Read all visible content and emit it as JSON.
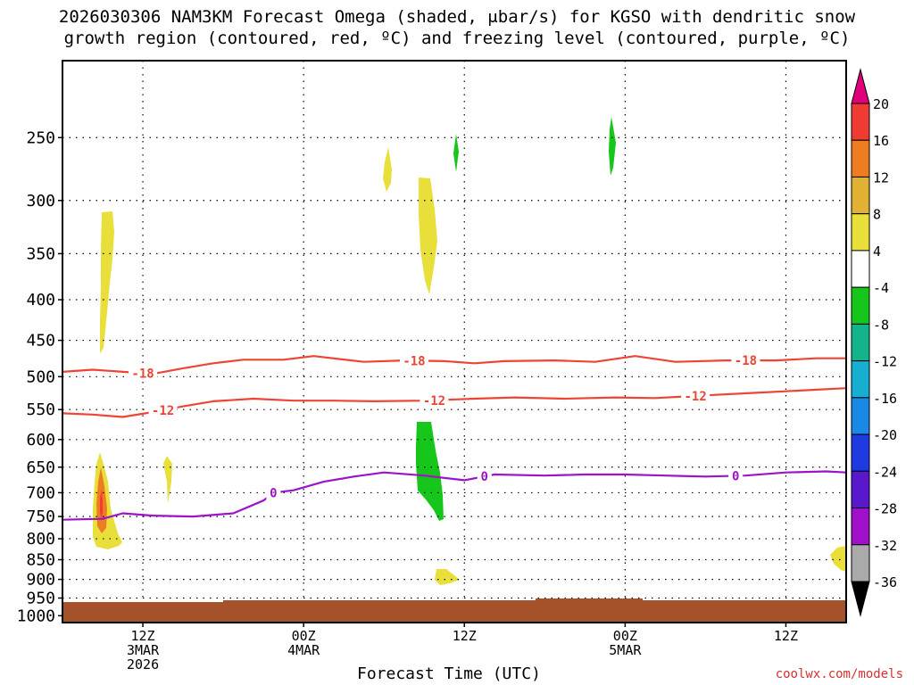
{
  "chart_data": {
    "type": "heatmap",
    "title_line1": "2026030306 NAM3KM Forecast Omega (shaded, μbar/s) for KGSO with dendritic snow",
    "title_line2": "growth region (contoured, red, ºC) and freezing level (contoured, purple, ºC)",
    "xlabel": "Forecast Time (UTC)",
    "credit": "coolwx.com/models",
    "x_hours_range": [
      6,
      84
    ],
    "y_pressure_range": [
      1020,
      200
    ],
    "y_ticks": [
      250,
      300,
      350,
      400,
      450,
      500,
      550,
      600,
      650,
      700,
      750,
      800,
      850,
      900,
      950,
      1000
    ],
    "y_tick_labels": [
      "250",
      "300",
      "350",
      "400",
      "450",
      "500",
      "550",
      "600",
      "650",
      "700",
      "750",
      "800",
      "850",
      "900",
      "950",
      "1000"
    ],
    "x_ticks": [
      {
        "hour": 14,
        "lines": [
          "12Z",
          "3MAR",
          "2026"
        ]
      },
      {
        "hour": 30,
        "lines": [
          "00Z",
          "4MAR"
        ]
      },
      {
        "hour": 46,
        "lines": [
          "12Z"
        ]
      },
      {
        "hour": 62,
        "lines": [
          "00Z",
          "5MAR"
        ]
      },
      {
        "hour": 78,
        "lines": [
          "12Z"
        ]
      }
    ],
    "colorbar": {
      "labels": [
        "20",
        "16",
        "12",
        "8",
        "4",
        "-4",
        "-8",
        "-12",
        "-16",
        "-20",
        "-24",
        "-28",
        "-32",
        "-36"
      ],
      "colors": [
        "#e0007a",
        "#ee3c33",
        "#ee7d22",
        "#e0b132",
        "#e8df3a",
        "#ffffff",
        "#16c61a",
        "#14b38c",
        "#17aed1",
        "#1a88e6",
        "#1f3ae0",
        "#5a18cc",
        "#a010c8",
        "#aaaaaa",
        "#000000"
      ]
    },
    "contours": [
      {
        "name": "dgz-top-minus18",
        "color": "#ee4436",
        "label": "-18",
        "label_hours": [
          14,
          41,
          74
        ],
        "points": [
          [
            6,
            493
          ],
          [
            9,
            490
          ],
          [
            13,
            494
          ],
          [
            15,
            496
          ],
          [
            18,
            488
          ],
          [
            21,
            481
          ],
          [
            24,
            476
          ],
          [
            28,
            476
          ],
          [
            31,
            471
          ],
          [
            36,
            479
          ],
          [
            40,
            477
          ],
          [
            44,
            478
          ],
          [
            47,
            481
          ],
          [
            50,
            478
          ],
          [
            55,
            477
          ],
          [
            59,
            479
          ],
          [
            63,
            471
          ],
          [
            67,
            479
          ],
          [
            72,
            477
          ],
          [
            77,
            477
          ],
          [
            81,
            474
          ],
          [
            84,
            474
          ]
        ]
      },
      {
        "name": "dgz-bottom-minus12",
        "color": "#ee4436",
        "label": "-12",
        "label_hours": [
          16,
          43,
          69
        ],
        "points": [
          [
            6,
            556
          ],
          [
            9,
            558
          ],
          [
            12,
            562
          ],
          [
            15,
            554
          ],
          [
            18,
            545
          ],
          [
            21,
            537
          ],
          [
            25,
            533
          ],
          [
            29,
            536
          ],
          [
            33,
            536
          ],
          [
            37,
            537
          ],
          [
            42,
            536
          ],
          [
            47,
            533
          ],
          [
            51,
            531
          ],
          [
            56,
            533
          ],
          [
            61,
            531
          ],
          [
            65,
            532
          ],
          [
            71,
            527
          ],
          [
            75,
            524
          ],
          [
            80,
            520
          ],
          [
            84,
            517
          ]
        ]
      },
      {
        "name": "freezing-level-0",
        "color": "#9d13c7",
        "label": "0",
        "label_hours": [
          27,
          48,
          73
        ],
        "points": [
          [
            6,
            757
          ],
          [
            10,
            755
          ],
          [
            12,
            743
          ],
          [
            15,
            748
          ],
          [
            19,
            750
          ],
          [
            23,
            743
          ],
          [
            26,
            716
          ],
          [
            27,
            700
          ],
          [
            29,
            695
          ],
          [
            32,
            678
          ],
          [
            35,
            668
          ],
          [
            38,
            660
          ],
          [
            42,
            666
          ],
          [
            46,
            675
          ],
          [
            49,
            664
          ],
          [
            54,
            666
          ],
          [
            58,
            664
          ],
          [
            62,
            664
          ],
          [
            66,
            666
          ],
          [
            70,
            668
          ],
          [
            74,
            666
          ],
          [
            78,
            660
          ],
          [
            82,
            658
          ],
          [
            84,
            660
          ]
        ]
      }
    ],
    "omega_features": [
      {
        "name": "rising-yellow-plume-upper",
        "value": 4,
        "shape": "rising plume"
      },
      {
        "name": "rising-yellow-plume-lower",
        "value": 4,
        "shape": "rising plume"
      },
      {
        "name": "rising-orange-core",
        "value": 12,
        "shape": "rising plume"
      },
      {
        "name": "rising-red-core",
        "value": 16,
        "shape": "rising plume"
      },
      {
        "name": "rising-yellow-thin-plume",
        "value": 4,
        "shape": "rising plume"
      },
      {
        "name": "rising-yellow-mid-column",
        "value": 4,
        "shape": "rising plume"
      },
      {
        "name": "rising-yellow-upper-blob",
        "value": 4,
        "shape": "rising plume"
      },
      {
        "name": "rising-yellow-low-blob",
        "value": 4,
        "shape": "rising plume"
      },
      {
        "name": "rising-yellow-right-edge-blob",
        "value": 4,
        "shape": "rising plume"
      },
      {
        "name": "sinking-green-column",
        "value": -6,
        "shape": "sinking column"
      },
      {
        "name": "sinking-green-sliver-1",
        "value": -6,
        "shape": "sinking column"
      },
      {
        "name": "sinking-green-sliver-2",
        "value": -6,
        "shape": "sinking column"
      }
    ],
    "ground": {
      "name": "terrain-below-ground",
      "color": "#a5522a"
    }
  }
}
